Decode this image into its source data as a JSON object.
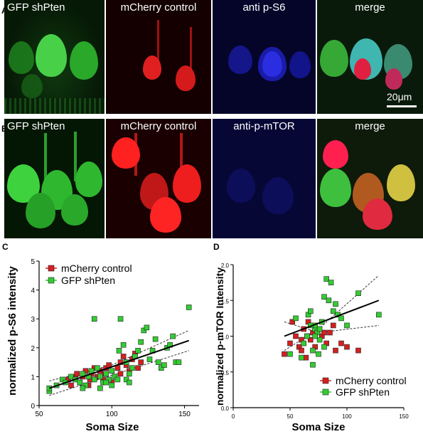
{
  "figure": {
    "panel_letters": [
      "A",
      "B",
      "C",
      "D"
    ],
    "row_a": {
      "tiles": [
        "GFP shPten",
        "mCherry control",
        "anti p-S6",
        "merge"
      ],
      "scalebar_label": "20μm"
    },
    "row_b": {
      "tiles": [
        "GFP shPten",
        "mCherry control",
        "anti-p-mTOR",
        "merge"
      ]
    },
    "colors": {
      "green_channel": "#2fbf2f",
      "red_channel": "#e01818",
      "blue_channel": "#1a24d0",
      "mcherry_marker": "#d42020",
      "gfp_marker": "#33cc33"
    }
  },
  "chart_data": [
    {
      "type": "scatter",
      "panel": "C",
      "xlabel": "Soma Size",
      "ylabel": "normalized p-S6 intensity",
      "xlim": [
        50,
        160
      ],
      "ylim": [
        0,
        5
      ],
      "xticks": [
        50,
        100,
        150
      ],
      "yticks": [
        0,
        1,
        2,
        3,
        4,
        5
      ],
      "legend_position": "top-left",
      "series": [
        {
          "name": "mCherry control",
          "marker": "square",
          "color": "#d42020",
          "points": [
            [
              70,
              0.9
            ],
            [
              72,
              0.7
            ],
            [
              75,
              1.0
            ],
            [
              78,
              0.8
            ],
            [
              80,
              1.0
            ],
            [
              82,
              1.2
            ],
            [
              85,
              0.9
            ],
            [
              86,
              1.1
            ],
            [
              88,
              1.3
            ],
            [
              90,
              1.0
            ],
            [
              92,
              1.2
            ],
            [
              95,
              1.1
            ],
            [
              96,
              1.3
            ],
            [
              98,
              1.4
            ],
            [
              100,
              1.2
            ],
            [
              102,
              1.0
            ],
            [
              104,
              1.3
            ],
            [
              106,
              1.5
            ],
            [
              108,
              1.7
            ],
            [
              110,
              1.4
            ],
            [
              112,
              1.2
            ],
            [
              114,
              1.6
            ],
            [
              116,
              1.8
            ],
            [
              118,
              1.3
            ],
            [
              120,
              1.5
            ],
            [
              84,
              0.7
            ],
            [
              76,
              1.1
            ],
            [
              94,
              0.9
            ],
            [
              100,
              0.8
            ],
            [
              106,
              1.1
            ]
          ]
        },
        {
          "name": "GFP shPten",
          "marker": "square",
          "color": "#33cc33",
          "points": [
            [
              57,
              0.5
            ],
            [
              57,
              0.6
            ],
            [
              62,
              0.7
            ],
            [
              66,
              0.9
            ],
            [
              68,
              0.8
            ],
            [
              72,
              1.0
            ],
            [
              75,
              0.9
            ],
            [
              78,
              0.8
            ],
            [
              80,
              1.1
            ],
            [
              82,
              0.7
            ],
            [
              84,
              1.0
            ],
            [
              86,
              1.2
            ],
            [
              88,
              3.0
            ],
            [
              90,
              1.3
            ],
            [
              92,
              1.0
            ],
            [
              94,
              0.8
            ],
            [
              96,
              1.1
            ],
            [
              98,
              0.9
            ],
            [
              100,
              0.7
            ],
            [
              100,
              1.2
            ],
            [
              102,
              1.0
            ],
            [
              104,
              0.9
            ],
            [
              105,
              1.9
            ],
            [
              106,
              3.0
            ],
            [
              108,
              2.1
            ],
            [
              110,
              1.5
            ],
            [
              112,
              1.1
            ],
            [
              114,
              1.3
            ],
            [
              116,
              1.7
            ],
            [
              118,
              1.9
            ],
            [
              120,
              2.2
            ],
            [
              122,
              2.6
            ],
            [
              124,
              2.7
            ],
            [
              126,
              1.6
            ],
            [
              128,
              1.9
            ],
            [
              130,
              2.3
            ],
            [
              132,
              1.5
            ],
            [
              134,
              1.3
            ],
            [
              136,
              1.4
            ],
            [
              138,
              2.0
            ],
            [
              140,
              2.1
            ],
            [
              142,
              2.4
            ],
            [
              144,
              1.5
            ],
            [
              146,
              1.5
            ],
            [
              153,
              3.4
            ],
            [
              96,
              0.8
            ],
            [
              92,
              0.6
            ],
            [
              88,
              0.9
            ],
            [
              80,
              0.6
            ],
            [
              110,
              0.9
            ],
            [
              112,
              0.8
            ]
          ]
        }
      ],
      "fit": {
        "x": [
          57,
          153
        ],
        "y": [
          0.6,
          2.25
        ]
      },
      "ci_upper": {
        "x": [
          57,
          100,
          153
        ],
        "y": [
          0.85,
          1.4,
          2.6
        ]
      },
      "ci_lower": {
        "x": [
          57,
          100,
          153
        ],
        "y": [
          0.35,
          1.05,
          1.9
        ]
      }
    },
    {
      "type": "scatter",
      "panel": "D",
      "xlabel": "Soma Size",
      "ylabel": "normalized p-mTOR Intensity",
      "xlim": [
        0,
        150
      ],
      "ylim": [
        0,
        2.0
      ],
      "xticks": [
        0,
        50,
        100,
        150
      ],
      "yticks": [
        0.0,
        0.5,
        1.0,
        1.5,
        2.0
      ],
      "legend_position": "bottom-right",
      "series": [
        {
          "name": "mCherry control",
          "marker": "square",
          "color": "#d42020",
          "points": [
            [
              45,
              0.75
            ],
            [
              50,
              0.9
            ],
            [
              52,
              1.2
            ],
            [
              55,
              1.0
            ],
            [
              58,
              0.85
            ],
            [
              60,
              0.8
            ],
            [
              62,
              1.1
            ],
            [
              64,
              0.7
            ],
            [
              66,
              1.2
            ],
            [
              68,
              0.95
            ],
            [
              70,
              1.05
            ],
            [
              72,
              0.85
            ],
            [
              75,
              1.1
            ],
            [
              78,
              1.0
            ],
            [
              80,
              1.05
            ],
            [
              82,
              0.9
            ],
            [
              85,
              1.05
            ],
            [
              88,
              1.15
            ],
            [
              90,
              0.8
            ],
            [
              95,
              0.9
            ],
            [
              100,
              0.85
            ],
            [
              110,
              0.8
            ],
            [
              60,
              0.95
            ],
            [
              65,
              1.0
            ]
          ]
        },
        {
          "name": "GFP shPten",
          "marker": "square",
          "color": "#33cc33",
          "points": [
            [
              50,
              0.75
            ],
            [
              55,
              1.25
            ],
            [
              60,
              0.7
            ],
            [
              62,
              0.9
            ],
            [
              65,
              1.0
            ],
            [
              66,
              1.3
            ],
            [
              68,
              1.35
            ],
            [
              70,
              0.6
            ],
            [
              70,
              0.8
            ],
            [
              72,
              1.1
            ],
            [
              72,
              1.15
            ],
            [
              74,
              1.05
            ],
            [
              75,
              0.75
            ],
            [
              76,
              1.1
            ],
            [
              76,
              0.95
            ],
            [
              78,
              1.2
            ],
            [
              80,
              1.55
            ],
            [
              82,
              1.8
            ],
            [
              84,
              1.5
            ],
            [
              86,
              1.75
            ],
            [
              88,
              1.35
            ],
            [
              90,
              1.45
            ],
            [
              92,
              1.3
            ],
            [
              95,
              1.25
            ],
            [
              100,
              1.15
            ],
            [
              110,
              1.6
            ],
            [
              128,
              1.3
            ],
            [
              72,
              1.0
            ],
            [
              68,
              1.15
            ],
            [
              80,
              0.85
            ]
          ]
        }
      ],
      "fit": {
        "x": [
          45,
          128
        ],
        "y": [
          1.0,
          1.5
        ]
      },
      "ci_upper": {
        "x": [
          45,
          75,
          128
        ],
        "y": [
          0.8,
          1.1,
          1.85
        ]
      },
      "ci_lower": {
        "x": [
          45,
          75,
          128
        ],
        "y": [
          1.2,
          1.05,
          1.15
        ]
      }
    }
  ]
}
